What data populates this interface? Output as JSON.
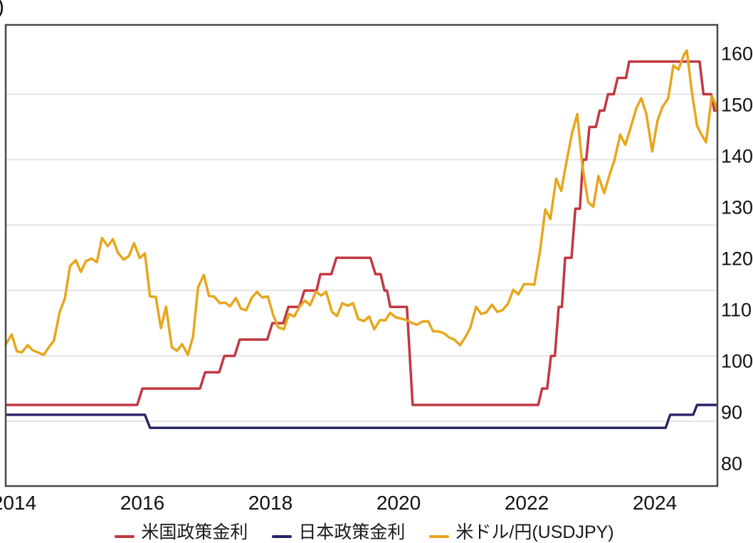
{
  "left_axis_title_fragment": ")",
  "chart_data": {
    "type": "line",
    "title": "",
    "xlabel": "",
    "grid": "horizontal",
    "legend_position": "bottom",
    "x_domain": [
      2013.867,
      2024.978
    ],
    "x_ticks": [
      2014,
      2016,
      2018,
      2020,
      2022,
      2024
    ],
    "left_axis": {
      "unit": "%",
      "visible_title_fragment": ")",
      "min": -0.99,
      "max": 6.06,
      "gridline_values": [
        0,
        1,
        2,
        3,
        4,
        5
      ]
    },
    "right_axis": {
      "unit": "JPY",
      "min": 75.7,
      "max": 165.7,
      "tick_values": [
        160,
        150,
        140,
        130,
        120,
        110,
        100,
        90,
        80
      ]
    },
    "colors": {
      "us": "#c13842",
      "japan": "#262366",
      "usdjpy": "#e7a61d",
      "gridline": "#e4e4e4",
      "frame": "#4a4a4a"
    },
    "series": [
      {
        "key": "us-policy-rate",
        "name": "米国政策金利",
        "color": "#c13842",
        "axis": "left",
        "stroke_width": 3.5,
        "points": [
          [
            2013.867,
            0.25
          ],
          [
            2015.92,
            0.25
          ],
          [
            2016.0,
            0.5
          ],
          [
            2016.9,
            0.5
          ],
          [
            2016.98,
            0.75
          ],
          [
            2017.2,
            0.75
          ],
          [
            2017.28,
            1.0
          ],
          [
            2017.44,
            1.0
          ],
          [
            2017.52,
            1.25
          ],
          [
            2017.95,
            1.25
          ],
          [
            2018.03,
            1.5
          ],
          [
            2018.2,
            1.5
          ],
          [
            2018.28,
            1.75
          ],
          [
            2018.45,
            1.75
          ],
          [
            2018.53,
            2.0
          ],
          [
            2018.72,
            2.0
          ],
          [
            2018.78,
            2.25
          ],
          [
            2018.95,
            2.25
          ],
          [
            2019.03,
            2.5
          ],
          [
            2019.56,
            2.5
          ],
          [
            2019.64,
            2.25
          ],
          [
            2019.72,
            2.25
          ],
          [
            2019.78,
            2.0
          ],
          [
            2019.82,
            2.0
          ],
          [
            2019.87,
            1.75
          ],
          [
            2020.13,
            1.75
          ],
          [
            2020.16,
            1.25
          ],
          [
            2020.22,
            0.25
          ],
          [
            2022.18,
            0.25
          ],
          [
            2022.24,
            0.5
          ],
          [
            2022.32,
            0.5
          ],
          [
            2022.38,
            1.0
          ],
          [
            2022.44,
            1.0
          ],
          [
            2022.5,
            1.75
          ],
          [
            2022.55,
            1.75
          ],
          [
            2022.6,
            2.5
          ],
          [
            2022.7,
            2.5
          ],
          [
            2022.76,
            3.25
          ],
          [
            2022.83,
            3.25
          ],
          [
            2022.88,
            4.0
          ],
          [
            2022.93,
            4.0
          ],
          [
            2022.98,
            4.5
          ],
          [
            2023.08,
            4.5
          ],
          [
            2023.14,
            4.75
          ],
          [
            2023.21,
            4.75
          ],
          [
            2023.27,
            5.0
          ],
          [
            2023.36,
            5.0
          ],
          [
            2023.42,
            5.25
          ],
          [
            2023.55,
            5.25
          ],
          [
            2023.6,
            5.5
          ],
          [
            2024.7,
            5.5
          ],
          [
            2024.76,
            5.0
          ],
          [
            2024.88,
            5.0
          ],
          [
            2024.93,
            4.75
          ],
          [
            2024.978,
            4.75
          ]
        ]
      },
      {
        "key": "japan-policy-rate",
        "name": "日本政策金利",
        "color": "#262366",
        "axis": "left",
        "stroke_width": 3.4,
        "points": [
          [
            2013.867,
            0.1
          ],
          [
            2016.04,
            0.1
          ],
          [
            2016.12,
            -0.1
          ],
          [
            2024.17,
            -0.1
          ],
          [
            2024.24,
            0.1
          ],
          [
            2024.6,
            0.1
          ],
          [
            2024.66,
            0.25
          ],
          [
            2024.978,
            0.25
          ]
        ]
      },
      {
        "key": "usdjpy",
        "name": "米ドル/円(USDJPY)",
        "color": "#e7a61d",
        "axis": "right",
        "stroke_width": 3.5,
        "points": [
          [
            2013.867,
            103.3
          ],
          [
            2013.96,
            105.3
          ],
          [
            2014.04,
            102.0
          ],
          [
            2014.12,
            101.8
          ],
          [
            2014.21,
            103.2
          ],
          [
            2014.29,
            102.2
          ],
          [
            2014.37,
            101.8
          ],
          [
            2014.46,
            101.3
          ],
          [
            2014.54,
            102.8
          ],
          [
            2014.62,
            104.1
          ],
          [
            2014.71,
            109.7
          ],
          [
            2014.79,
            112.3
          ],
          [
            2014.87,
            118.6
          ],
          [
            2014.96,
            119.8
          ],
          [
            2015.04,
            117.5
          ],
          [
            2015.12,
            119.6
          ],
          [
            2015.21,
            120.1
          ],
          [
            2015.29,
            119.4
          ],
          [
            2015.37,
            124.1
          ],
          [
            2015.46,
            122.5
          ],
          [
            2015.54,
            123.9
          ],
          [
            2015.62,
            121.2
          ],
          [
            2015.71,
            119.9
          ],
          [
            2015.79,
            120.6
          ],
          [
            2015.87,
            123.1
          ],
          [
            2015.96,
            120.2
          ],
          [
            2016.04,
            121.1
          ],
          [
            2016.12,
            112.7
          ],
          [
            2016.21,
            112.6
          ],
          [
            2016.29,
            106.5
          ],
          [
            2016.37,
            110.7
          ],
          [
            2016.46,
            102.8
          ],
          [
            2016.54,
            102.1
          ],
          [
            2016.62,
            103.4
          ],
          [
            2016.71,
            101.3
          ],
          [
            2016.79,
            104.8
          ],
          [
            2016.87,
            114.5
          ],
          [
            2016.96,
            116.9
          ],
          [
            2017.04,
            112.8
          ],
          [
            2017.12,
            112.7
          ],
          [
            2017.21,
            111.4
          ],
          [
            2017.29,
            111.5
          ],
          [
            2017.37,
            110.8
          ],
          [
            2017.46,
            112.4
          ],
          [
            2017.54,
            110.3
          ],
          [
            2017.62,
            110.0
          ],
          [
            2017.71,
            112.5
          ],
          [
            2017.79,
            113.6
          ],
          [
            2017.87,
            112.5
          ],
          [
            2017.96,
            112.7
          ],
          [
            2018.04,
            109.2
          ],
          [
            2018.12,
            106.7
          ],
          [
            2018.21,
            106.3
          ],
          [
            2018.29,
            109.3
          ],
          [
            2018.37,
            108.8
          ],
          [
            2018.46,
            110.8
          ],
          [
            2018.54,
            111.9
          ],
          [
            2018.62,
            111.0
          ],
          [
            2018.71,
            113.7
          ],
          [
            2018.79,
            112.9
          ],
          [
            2018.87,
            113.6
          ],
          [
            2018.96,
            109.7
          ],
          [
            2019.04,
            108.9
          ],
          [
            2019.12,
            111.4
          ],
          [
            2019.21,
            110.9
          ],
          [
            2019.29,
            111.4
          ],
          [
            2019.37,
            108.3
          ],
          [
            2019.46,
            107.9
          ],
          [
            2019.54,
            108.8
          ],
          [
            2019.62,
            106.3
          ],
          [
            2019.71,
            108.1
          ],
          [
            2019.79,
            108.0
          ],
          [
            2019.87,
            109.5
          ],
          [
            2019.96,
            108.6
          ],
          [
            2020.04,
            108.4
          ],
          [
            2020.12,
            108.1
          ],
          [
            2020.21,
            107.5
          ],
          [
            2020.29,
            107.2
          ],
          [
            2020.37,
            107.8
          ],
          [
            2020.46,
            107.9
          ],
          [
            2020.54,
            105.9
          ],
          [
            2020.62,
            105.9
          ],
          [
            2020.71,
            105.5
          ],
          [
            2020.79,
            104.7
          ],
          [
            2020.87,
            104.3
          ],
          [
            2020.96,
            103.2
          ],
          [
            2021.04,
            104.7
          ],
          [
            2021.12,
            106.6
          ],
          [
            2021.21,
            110.7
          ],
          [
            2021.29,
            109.3
          ],
          [
            2021.37,
            109.6
          ],
          [
            2021.46,
            111.1
          ],
          [
            2021.54,
            109.7
          ],
          [
            2021.62,
            110.0
          ],
          [
            2021.71,
            111.3
          ],
          [
            2021.79,
            114.0
          ],
          [
            2021.87,
            113.1
          ],
          [
            2021.96,
            115.1
          ],
          [
            2022.04,
            115.1
          ],
          [
            2022.12,
            115.0
          ],
          [
            2022.21,
            121.7
          ],
          [
            2022.29,
            129.7
          ],
          [
            2022.37,
            127.8
          ],
          [
            2022.46,
            135.7
          ],
          [
            2022.54,
            133.3
          ],
          [
            2022.62,
            138.9
          ],
          [
            2022.71,
            144.7
          ],
          [
            2022.79,
            148.3
          ],
          [
            2022.87,
            138.1
          ],
          [
            2022.96,
            131.1
          ],
          [
            2023.04,
            130.2
          ],
          [
            2023.12,
            136.2
          ],
          [
            2023.21,
            132.9
          ],
          [
            2023.29,
            136.3
          ],
          [
            2023.37,
            139.3
          ],
          [
            2023.46,
            144.3
          ],
          [
            2023.54,
            142.3
          ],
          [
            2023.62,
            145.5
          ],
          [
            2023.71,
            149.4
          ],
          [
            2023.79,
            151.4
          ],
          [
            2023.87,
            148.2
          ],
          [
            2023.96,
            141.0
          ],
          [
            2024.04,
            146.9
          ],
          [
            2024.12,
            149.7
          ],
          [
            2024.21,
            151.4
          ],
          [
            2024.29,
            157.8
          ],
          [
            2024.37,
            157.0
          ],
          [
            2024.46,
            160.0
          ],
          [
            2024.5,
            160.7
          ],
          [
            2024.58,
            152.5
          ],
          [
            2024.66,
            146.0
          ],
          [
            2024.72,
            144.5
          ],
          [
            2024.8,
            142.8
          ],
          [
            2024.89,
            151.8
          ],
          [
            2024.94,
            150.5
          ],
          [
            2024.978,
            148.8
          ]
        ]
      }
    ]
  }
}
